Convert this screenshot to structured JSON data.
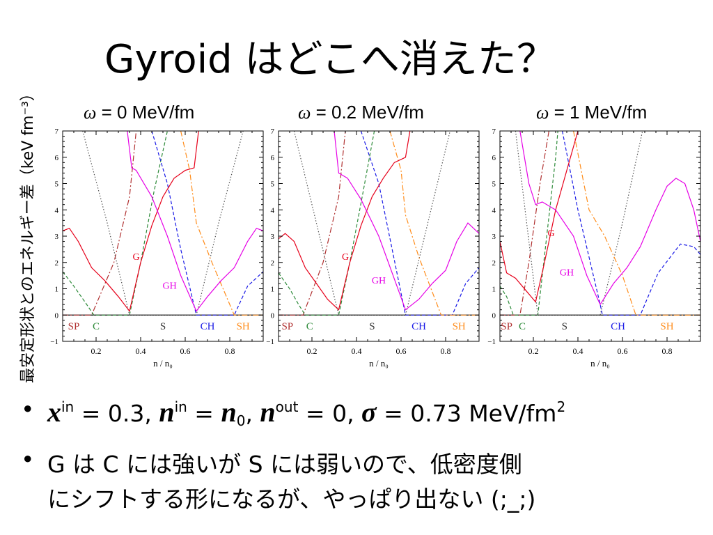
{
  "slide": {
    "title": "Gyroid はどこへ消えた？",
    "ylabel": "最安定形状とのエネルギー差（keV fm⁻³）"
  },
  "bullets": {
    "b1": {
      "x": "x",
      "in1": "in",
      "eq1": " = 0.3, ",
      "n": "n",
      "in2": "in",
      "eq2": " = ",
      "n0": "n",
      "zero_sub": "0",
      "comma": ", ",
      "nout": "n",
      "out": "out",
      "eq3": " = 0, ",
      "sigma": "σ",
      "eq4": " = 0.73 MeV/fm",
      "two": "2"
    },
    "b2": {
      "line1": "G は C には強いが S には弱いので、低密度側",
      "line2": "にシフトする形になるが、やっぱり出ない (;_;)"
    },
    "dot": "•"
  },
  "chart_data": [
    {
      "type": "line",
      "title": "ω = 0 MeV/fm",
      "title_omega": "ω",
      "title_rest": " = 0 MeV/fm",
      "xlabel": "n / n₀",
      "xlim": [
        0.05,
        0.95
      ],
      "ylim": [
        -1,
        7
      ],
      "xticks": [
        "0.2",
        "0.4",
        "0.6",
        "0.8"
      ],
      "yticks": [
        "−1",
        "0",
        "1",
        "2",
        "3",
        "4",
        "5",
        "6",
        "7"
      ],
      "region_labels": [
        {
          "text": "SP",
          "x": 0.1,
          "color": "#b03030"
        },
        {
          "text": "C",
          "x": 0.2,
          "color": "#2e8b3a"
        },
        {
          "text": "S",
          "x": 0.5,
          "color": "#333333"
        },
        {
          "text": "CH",
          "x": 0.7,
          "color": "#1a1ae6"
        },
        {
          "text": "SH",
          "x": 0.86,
          "color": "#ff8c1a"
        }
      ],
      "curve_labels": [
        {
          "text": "G",
          "x": 0.38,
          "y": 2.1,
          "color": "#e6001a"
        },
        {
          "text": "GH",
          "x": 0.53,
          "y": 1.0,
          "color": "#e600e6"
        }
      ],
      "series": [
        {
          "name": "SP",
          "color": "#b03030",
          "dash": "8,3,2,3",
          "points": [
            [
              0.05,
              0
            ],
            [
              0.18,
              0
            ],
            [
              0.28,
              2
            ],
            [
              0.35,
              4.5
            ],
            [
              0.38,
              7
            ]
          ]
        },
        {
          "name": "C",
          "color": "#2e8b3a",
          "dash": "5,3",
          "points": [
            [
              0.05,
              1.65
            ],
            [
              0.1,
              1.1
            ],
            [
              0.15,
              0.5
            ],
            [
              0.19,
              0
            ],
            [
              0.35,
              0
            ],
            [
              0.4,
              2
            ],
            [
              0.46,
              4.7
            ],
            [
              0.52,
              7
            ]
          ]
        },
        {
          "name": "S",
          "color": "#555555",
          "dash": "1.5,2.5",
          "points": [
            [
              0.14,
              7
            ],
            [
              0.25,
              3.5
            ],
            [
              0.35,
              0
            ],
            [
              0.65,
              0
            ],
            [
              0.75,
              3.5
            ],
            [
              0.86,
              7
            ]
          ]
        },
        {
          "name": "CH",
          "color": "#1a1ae6",
          "dash": "5,3",
          "points": [
            [
              0.45,
              7
            ],
            [
              0.52,
              5
            ],
            [
              0.58,
              2.5
            ],
            [
              0.65,
              0
            ],
            [
              0.82,
              0
            ],
            [
              0.88,
              1.1
            ],
            [
              0.95,
              1.65
            ]
          ]
        },
        {
          "name": "SH",
          "color": "#ff8c1a",
          "dash": "8,3,2,3",
          "points": [
            [
              0.58,
              7
            ],
            [
              0.62,
              5.5
            ],
            [
              0.65,
              3.5
            ],
            [
              0.72,
              2
            ],
            [
              0.82,
              0
            ],
            [
              0.95,
              0
            ]
          ]
        },
        {
          "name": "G",
          "color": "#e6001a",
          "dash": "",
          "points": [
            [
              0.05,
              3.2
            ],
            [
              0.08,
              3.3
            ],
            [
              0.12,
              2.8
            ],
            [
              0.18,
              1.8
            ],
            [
              0.24,
              1.3
            ],
            [
              0.3,
              0.7
            ],
            [
              0.35,
              0.15
            ],
            [
              0.4,
              2
            ],
            [
              0.45,
              3.4
            ],
            [
              0.5,
              4.5
            ],
            [
              0.55,
              5.2
            ],
            [
              0.6,
              5.5
            ],
            [
              0.64,
              5.6
            ],
            [
              0.66,
              7
            ]
          ]
        },
        {
          "name": "GH",
          "color": "#e600e6",
          "dash": "",
          "points": [
            [
              0.34,
              7
            ],
            [
              0.36,
              5.6
            ],
            [
              0.38,
              5.5
            ],
            [
              0.45,
              4.5
            ],
            [
              0.52,
              3
            ],
            [
              0.58,
              1.5
            ],
            [
              0.65,
              0.15
            ],
            [
              0.7,
              0.7
            ],
            [
              0.76,
              1.3
            ],
            [
              0.82,
              1.8
            ],
            [
              0.88,
              2.8
            ],
            [
              0.92,
              3.3
            ],
            [
              0.95,
              3.2
            ]
          ]
        }
      ]
    },
    {
      "type": "line",
      "title": "ω = 0.2 MeV/fm",
      "title_omega": "ω",
      "title_rest": " = 0.2 MeV/fm",
      "xlabel": "n / n₀",
      "xlim": [
        0.05,
        0.95
      ],
      "ylim": [
        -1,
        7
      ],
      "xticks": [
        "0.2",
        "0.4",
        "0.6",
        "0.8"
      ],
      "yticks": [
        "−1",
        "0",
        "1",
        "2",
        "3",
        "4",
        "5",
        "6",
        "7"
      ],
      "region_labels": [
        {
          "text": "SP",
          "x": 0.09,
          "color": "#b03030"
        },
        {
          "text": "C",
          "x": 0.19,
          "color": "#2e8b3a"
        },
        {
          "text": "S",
          "x": 0.47,
          "color": "#333333"
        },
        {
          "text": "CH",
          "x": 0.68,
          "color": "#1a1ae6"
        },
        {
          "text": "SH",
          "x": 0.86,
          "color": "#ff8c1a"
        }
      ],
      "curve_labels": [
        {
          "text": "G",
          "x": 0.35,
          "y": 2.1,
          "color": "#e6001a"
        },
        {
          "text": "GH",
          "x": 0.5,
          "y": 1.2,
          "color": "#e600e6"
        }
      ],
      "series": [
        {
          "name": "SP",
          "color": "#b03030",
          "dash": "8,3,2,3",
          "points": [
            [
              0.05,
              0
            ],
            [
              0.16,
              0
            ],
            [
              0.25,
              2
            ],
            [
              0.32,
              4.5
            ],
            [
              0.35,
              7
            ]
          ]
        },
        {
          "name": "C",
          "color": "#2e8b3a",
          "dash": "5,3",
          "points": [
            [
              0.05,
              1.6
            ],
            [
              0.1,
              1
            ],
            [
              0.14,
              0.4
            ],
            [
              0.17,
              0
            ],
            [
              0.32,
              0
            ],
            [
              0.37,
              2
            ],
            [
              0.43,
              4.7
            ],
            [
              0.48,
              7
            ]
          ]
        },
        {
          "name": "S",
          "color": "#555555",
          "dash": "1.5,2.5",
          "points": [
            [
              0.12,
              7
            ],
            [
              0.22,
              3.5
            ],
            [
              0.32,
              0
            ],
            [
              0.62,
              0
            ],
            [
              0.72,
              3.5
            ],
            [
              0.82,
              7
            ]
          ]
        },
        {
          "name": "CH",
          "color": "#1a1ae6",
          "dash": "5,3",
          "points": [
            [
              0.42,
              7
            ],
            [
              0.5,
              5
            ],
            [
              0.56,
              2.5
            ],
            [
              0.62,
              0
            ],
            [
              0.83,
              0
            ],
            [
              0.89,
              1.2
            ],
            [
              0.95,
              1.8
            ]
          ]
        },
        {
          "name": "SH",
          "color": "#ff8c1a",
          "dash": "8,3,2,3",
          "points": [
            [
              0.55,
              7
            ],
            [
              0.6,
              5.5
            ],
            [
              0.62,
              3.8
            ],
            [
              0.68,
              2.2
            ],
            [
              0.78,
              0
            ],
            [
              0.95,
              0
            ]
          ]
        },
        {
          "name": "G",
          "color": "#e6001a",
          "dash": "",
          "points": [
            [
              0.05,
              2.9
            ],
            [
              0.08,
              3.1
            ],
            [
              0.12,
              2.8
            ],
            [
              0.17,
              1.8
            ],
            [
              0.22,
              1.2
            ],
            [
              0.27,
              0.6
            ],
            [
              0.32,
              0.2
            ],
            [
              0.37,
              2
            ],
            [
              0.42,
              3.4
            ],
            [
              0.47,
              4.5
            ],
            [
              0.52,
              5.2
            ],
            [
              0.57,
              5.8
            ],
            [
              0.62,
              6
            ],
            [
              0.64,
              7
            ]
          ]
        },
        {
          "name": "GH",
          "color": "#e600e6",
          "dash": "",
          "points": [
            [
              0.3,
              7
            ],
            [
              0.32,
              5.4
            ],
            [
              0.36,
              5.2
            ],
            [
              0.42,
              4.4
            ],
            [
              0.5,
              3
            ],
            [
              0.56,
              1.6
            ],
            [
              0.62,
              0.2
            ],
            [
              0.68,
              0.6
            ],
            [
              0.74,
              1.2
            ],
            [
              0.8,
              1.7
            ],
            [
              0.85,
              2.8
            ],
            [
              0.9,
              3.5
            ],
            [
              0.95,
              3.1
            ]
          ]
        }
      ]
    },
    {
      "type": "line",
      "title": "ω = 1 MeV/fm",
      "title_omega": "ω",
      "title_rest": " = 1 MeV/fm",
      "xlabel": "n / n₀",
      "xlim": [
        0.05,
        0.95
      ],
      "ylim": [
        -1,
        7
      ],
      "xticks": [
        "0.2",
        "0.4",
        "0.6",
        "0.8"
      ],
      "yticks": [
        "−1",
        "0",
        "1",
        "2",
        "3",
        "4",
        "5",
        "6",
        "7"
      ],
      "region_labels": [
        {
          "text": "SP",
          "x": 0.08,
          "color": "#b03030"
        },
        {
          "text": "C",
          "x": 0.15,
          "color": "#2e8b3a"
        },
        {
          "text": "S",
          "x": 0.34,
          "color": "#333333"
        },
        {
          "text": "CH",
          "x": 0.58,
          "color": "#1a1ae6"
        },
        {
          "text": "SH",
          "x": 0.8,
          "color": "#ff8c1a"
        }
      ],
      "curve_labels": [
        {
          "text": "G",
          "x": 0.28,
          "y": 3.0,
          "color": "#e6001a"
        },
        {
          "text": "GH",
          "x": 0.35,
          "y": 1.5,
          "color": "#e600e6"
        }
      ],
      "series": [
        {
          "name": "SP",
          "color": "#b03030",
          "dash": "8,3,2,3",
          "points": [
            [
              0.05,
              0
            ],
            [
              0.14,
              0
            ],
            [
              0.18,
              2
            ],
            [
              0.23,
              5
            ],
            [
              0.27,
              7
            ]
          ]
        },
        {
          "name": "C",
          "color": "#2e8b3a",
          "dash": "5,3",
          "points": [
            [
              0.05,
              1.1
            ],
            [
              0.08,
              0.7
            ],
            [
              0.11,
              0
            ],
            [
              0.22,
              0
            ],
            [
              0.26,
              3
            ],
            [
              0.3,
              6
            ],
            [
              0.31,
              7
            ]
          ]
        },
        {
          "name": "S",
          "color": "#555555",
          "dash": "1.5,2.5",
          "points": [
            [
              0.12,
              7
            ],
            [
              0.17,
              3.5
            ],
            [
              0.22,
              0
            ],
            [
              0.5,
              0
            ],
            [
              0.6,
              3.5
            ],
            [
              0.69,
              7
            ]
          ]
        },
        {
          "name": "CH",
          "color": "#1a1ae6",
          "dash": "5,3",
          "points": [
            [
              0.33,
              7
            ],
            [
              0.4,
              4
            ],
            [
              0.5,
              0.4
            ],
            [
              0.51,
              0
            ],
            [
              0.68,
              0
            ],
            [
              0.76,
              1.6
            ],
            [
              0.86,
              2.7
            ],
            [
              0.92,
              2.6
            ],
            [
              0.95,
              2.3
            ]
          ]
        },
        {
          "name": "SH",
          "color": "#ff8c1a",
          "dash": "8,3,2,3",
          "points": [
            [
              0.38,
              7
            ],
            [
              0.45,
              4
            ],
            [
              0.52,
              3
            ],
            [
              0.6,
              1.5
            ],
            [
              0.66,
              0
            ],
            [
              0.95,
              0
            ]
          ]
        },
        {
          "name": "G",
          "color": "#e6001a",
          "dash": "",
          "points": [
            [
              0.05,
              2.8
            ],
            [
              0.08,
              1.6
            ],
            [
              0.12,
              1.4
            ],
            [
              0.17,
              0.9
            ],
            [
              0.21,
              0.5
            ],
            [
              0.25,
              2
            ],
            [
              0.3,
              4
            ],
            [
              0.35,
              5.5
            ],
            [
              0.4,
              7
            ]
          ]
        },
        {
          "name": "GH",
          "color": "#e600e6",
          "dash": "",
          "points": [
            [
              0.14,
              7
            ],
            [
              0.18,
              5
            ],
            [
              0.21,
              4.2
            ],
            [
              0.24,
              4.3
            ],
            [
              0.3,
              4
            ],
            [
              0.38,
              3
            ],
            [
              0.44,
              1.5
            ],
            [
              0.5,
              0.4
            ],
            [
              0.56,
              1.2
            ],
            [
              0.62,
              1.8
            ],
            [
              0.68,
              2.6
            ],
            [
              0.75,
              4
            ],
            [
              0.8,
              4.9
            ],
            [
              0.84,
              5.2
            ],
            [
              0.88,
              5
            ],
            [
              0.92,
              4
            ],
            [
              0.95,
              2.8
            ]
          ]
        }
      ]
    }
  ]
}
